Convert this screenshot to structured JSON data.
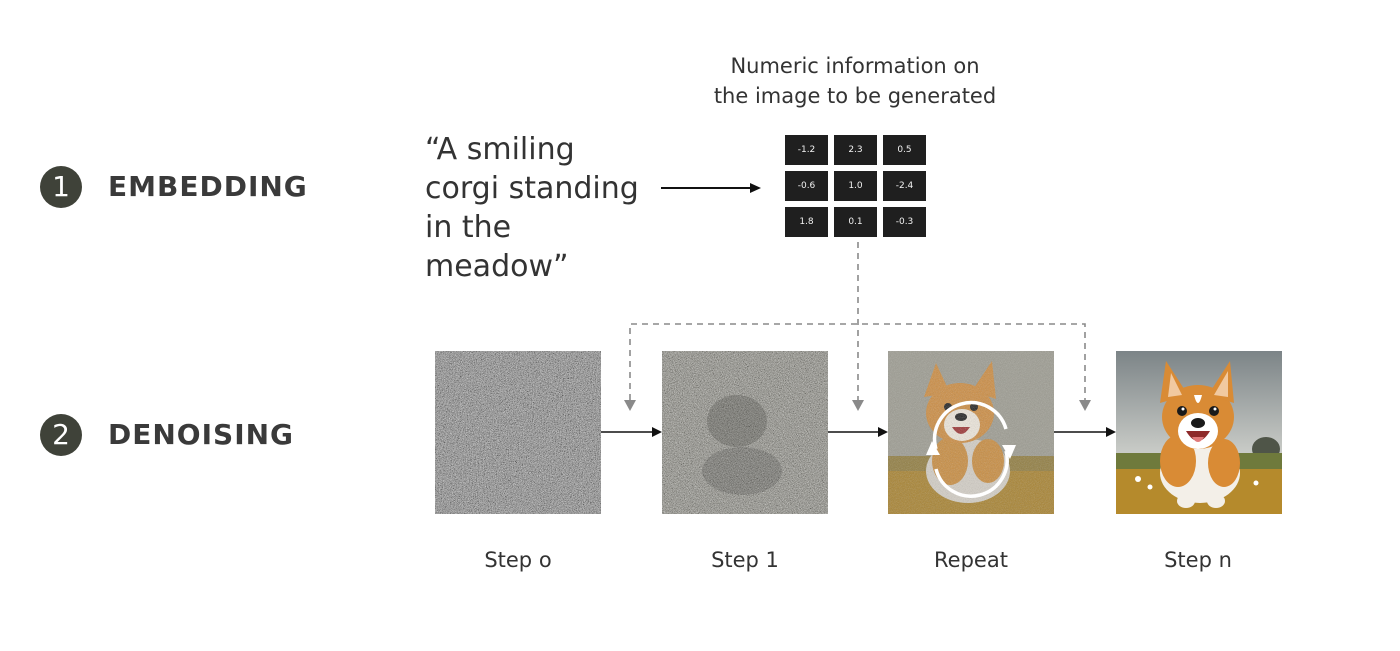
{
  "steps": [
    {
      "number": "1",
      "title": "EMBEDDING"
    },
    {
      "number": "2",
      "title": "DENOISING"
    }
  ],
  "prompt_text": "“A smiling corgi standing in the meadow”",
  "embedding": {
    "label_line1": "Numeric information on",
    "label_line2": "the image to be generated",
    "values": [
      [
        "-1.2",
        "2.3",
        "0.5"
      ],
      [
        "-0.6",
        "1.0",
        "-2.4"
      ],
      [
        "1.8",
        "0.1",
        "-0.3"
      ]
    ]
  },
  "denoise_panels": [
    {
      "label": "Step o",
      "kind": "noise"
    },
    {
      "label": "Step 1",
      "kind": "noise-faint"
    },
    {
      "label": "Repeat",
      "kind": "partial-corgi"
    },
    {
      "label": "Step n",
      "kind": "corgi"
    }
  ],
  "colors": {
    "badge": "#3f4239",
    "grid_cell": "#1f1f1f",
    "arrow": "#111111",
    "dashed": "#8a8a8a",
    "corgi_orange": "#d98b35",
    "meadow": "#b0862d"
  }
}
